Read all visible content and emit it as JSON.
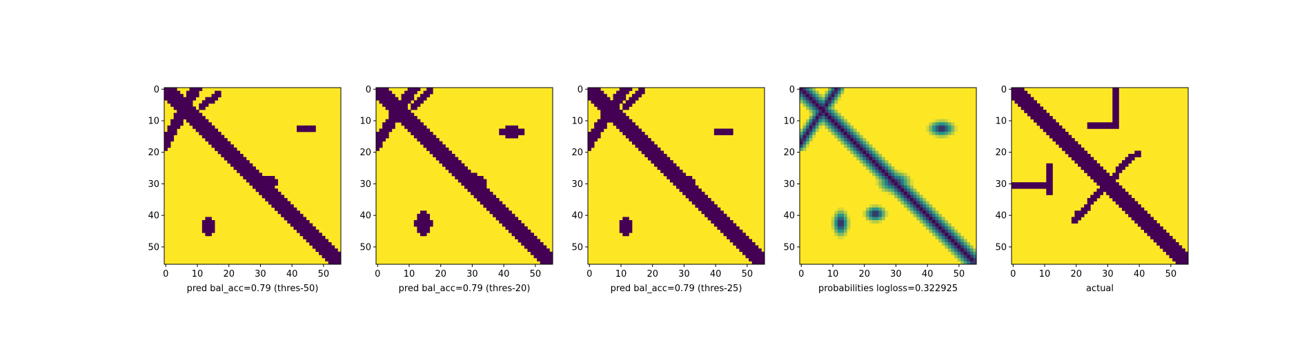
{
  "chart_data": [
    {
      "type": "heatmap",
      "title": "",
      "xlabel": "pred bal_acc=0.79 (thres-50)",
      "ylabel": "",
      "xlim": [
        0,
        56
      ],
      "ylim": [
        56,
        0
      ],
      "x_ticks": [
        "0",
        "10",
        "20",
        "30",
        "40",
        "50"
      ],
      "y_ticks": [
        "0",
        "10",
        "20",
        "30",
        "40",
        "50"
      ],
      "colormap": "viridis",
      "binary": true,
      "features": [
        {
          "kind": "diagonal",
          "from": [
            0,
            0
          ],
          "to": [
            55,
            55
          ],
          "width": 3
        },
        {
          "kind": "antidiagonal",
          "from": [
            10,
            0
          ],
          "to": [
            0,
            18
          ],
          "width": 2
        },
        {
          "kind": "antidiagonal",
          "from": [
            17,
            2
          ],
          "to": [
            12,
            6
          ],
          "width": 1
        },
        {
          "kind": "blob",
          "cx": 45,
          "cy": 13,
          "rx": 5,
          "ry": 2
        },
        {
          "kind": "blob",
          "cx": 14,
          "cy": 44,
          "rx": 3,
          "ry": 5
        },
        {
          "kind": "blob",
          "cx": 33,
          "cy": 30,
          "rx": 4,
          "ry": 3
        }
      ]
    },
    {
      "type": "heatmap",
      "title": "",
      "xlabel": "pred bal_acc=0.79 (thres-20)",
      "ylabel": "",
      "xlim": [
        0,
        56
      ],
      "ylim": [
        56,
        0
      ],
      "x_ticks": [
        "0",
        "10",
        "20",
        "30",
        "40",
        "50"
      ],
      "y_ticks": [
        "0",
        "10",
        "20",
        "30",
        "40",
        "50"
      ],
      "colormap": "viridis",
      "binary": true,
      "features": [
        {
          "kind": "diagonal",
          "from": [
            0,
            0
          ],
          "to": [
            55,
            55
          ],
          "width": 3
        },
        {
          "kind": "antidiagonal",
          "from": [
            12,
            0
          ],
          "to": [
            0,
            18
          ],
          "width": 2
        },
        {
          "kind": "antidiagonal",
          "from": [
            17,
            1
          ],
          "to": [
            12,
            6
          ],
          "width": 1
        },
        {
          "kind": "blob",
          "cx": 43,
          "cy": 14,
          "rx": 6,
          "ry": 3
        },
        {
          "kind": "blob",
          "cx": 40,
          "cy": 7,
          "rx": 1,
          "ry": 1
        },
        {
          "kind": "blob",
          "cx": 15,
          "cy": 43,
          "rx": 4,
          "ry": 6
        },
        {
          "kind": "blob",
          "cx": 7,
          "cy": 41,
          "rx": 1,
          "ry": 1
        },
        {
          "kind": "blob",
          "cx": 31,
          "cy": 30,
          "rx": 6,
          "ry": 4
        }
      ]
    },
    {
      "type": "heatmap",
      "title": "",
      "xlabel": "pred bal_acc=0.79 (thres-25)",
      "ylabel": "",
      "xlim": [
        0,
        56
      ],
      "ylim": [
        56,
        0
      ],
      "x_ticks": [
        "0",
        "10",
        "20",
        "30",
        "40",
        "50"
      ],
      "y_ticks": [
        "0",
        "10",
        "20",
        "30",
        "40",
        "50"
      ],
      "colormap": "viridis",
      "binary": true,
      "features": [
        {
          "kind": "diagonal",
          "from": [
            0,
            0
          ],
          "to": [
            55,
            55
          ],
          "width": 3
        },
        {
          "kind": "antidiagonal",
          "from": [
            12,
            0
          ],
          "to": [
            0,
            18
          ],
          "width": 2
        },
        {
          "kind": "antidiagonal",
          "from": [
            17,
            1
          ],
          "to": [
            12,
            6
          ],
          "width": 1
        },
        {
          "kind": "blob",
          "cx": 43,
          "cy": 14,
          "rx": 5,
          "ry": 2
        },
        {
          "kind": "blob",
          "cx": 40,
          "cy": 6,
          "rx": 1,
          "ry": 1
        },
        {
          "kind": "blob",
          "cx": 12,
          "cy": 44,
          "rx": 3,
          "ry": 5
        },
        {
          "kind": "blob",
          "cx": 31,
          "cy": 30,
          "rx": 5,
          "ry": 3
        }
      ]
    },
    {
      "type": "heatmap",
      "title": "",
      "xlabel": "probabilities logloss=0.322925",
      "ylabel": "",
      "xlim": [
        0,
        56
      ],
      "ylim": [
        56,
        0
      ],
      "x_ticks": [
        "0",
        "10",
        "20",
        "30",
        "40",
        "50"
      ],
      "y_ticks": [
        "0",
        "10",
        "20",
        "30",
        "40",
        "50"
      ],
      "colormap": "viridis",
      "binary": false,
      "features": [
        {
          "kind": "diagonal",
          "from": [
            0,
            0
          ],
          "to": [
            55,
            55
          ],
          "width": 3
        },
        {
          "kind": "antidiagonal",
          "from": [
            12,
            0
          ],
          "to": [
            0,
            18
          ],
          "width": 2
        },
        {
          "kind": "blob",
          "cx": 45,
          "cy": 13,
          "rx": 5,
          "ry": 3
        },
        {
          "kind": "blob",
          "cx": 13,
          "cy": 43,
          "rx": 3,
          "ry": 5
        },
        {
          "kind": "blob",
          "cx": 30,
          "cy": 30,
          "rx": 6,
          "ry": 4
        },
        {
          "kind": "blob",
          "cx": 24,
          "cy": 40,
          "rx": 4,
          "ry": 3
        }
      ]
    },
    {
      "type": "heatmap",
      "title": "",
      "xlabel": "actual",
      "ylabel": "",
      "xlim": [
        0,
        56
      ],
      "ylim": [
        56,
        0
      ],
      "x_ticks": [
        "0",
        "10",
        "20",
        "30",
        "40",
        "50"
      ],
      "y_ticks": [
        "0",
        "10",
        "20",
        "30",
        "40",
        "50"
      ],
      "colormap": "viridis",
      "binary": true,
      "features": [
        {
          "kind": "diagonal",
          "from": [
            0,
            0
          ],
          "to": [
            55,
            55
          ],
          "width": 3
        },
        {
          "kind": "antidiagonal",
          "from": [
            38,
            22
          ],
          "to": [
            20,
            42
          ],
          "width": 1
        },
        {
          "kind": "hline",
          "row": 12,
          "from": 24,
          "to": 34
        },
        {
          "kind": "vline",
          "col": 33,
          "from": 0,
          "to": 12
        },
        {
          "kind": "hline",
          "row": 31,
          "from": 0,
          "to": 12
        },
        {
          "kind": "vline",
          "col": 12,
          "from": 24,
          "to": 34
        },
        {
          "kind": "blob",
          "cx": 40,
          "cy": 21,
          "rx": 2,
          "ry": 1
        },
        {
          "kind": "blob",
          "cx": 21,
          "cy": 40,
          "rx": 1,
          "ry": 2
        }
      ]
    }
  ],
  "colors": {
    "low": "#440154",
    "mid": "#21918c",
    "high": "#fde725"
  }
}
